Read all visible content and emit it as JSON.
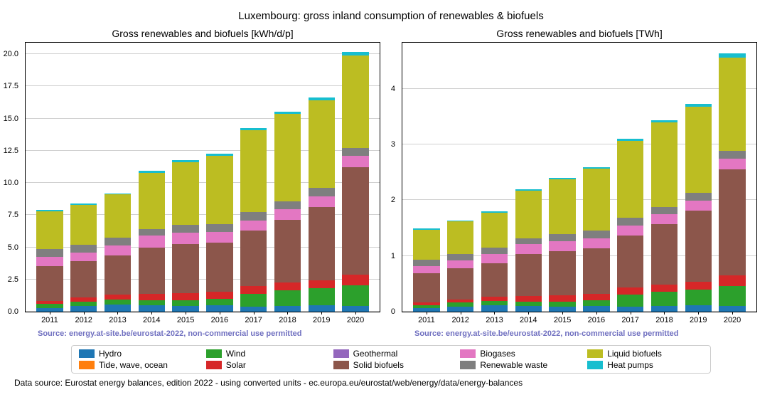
{
  "suptitle": "Luxembourg: gross inland consumption of renewables & biofuels",
  "source_line": "Source: energy.at-site.be/eurostat-2022, non-commercial use permitted",
  "source_color": "#7070c0",
  "footer": "Data source: Eurostat energy balances, edition 2022 - using converted units - ec.europa.eu/eurostat/web/energy/data/energy-balances",
  "grid_color": "#b0b0b0",
  "background_color": "#ffffff",
  "categories": [
    "2011",
    "2012",
    "2013",
    "2014",
    "2015",
    "2016",
    "2017",
    "2018",
    "2019",
    "2020"
  ],
  "series": [
    {
      "key": "hydro",
      "label": "Hydro",
      "color": "#1f77b4"
    },
    {
      "key": "tide",
      "label": "Tide, wave, ocean",
      "color": "#ff7f0e"
    },
    {
      "key": "wind",
      "label": "Wind",
      "color": "#2ca02c"
    },
    {
      "key": "solar",
      "label": "Solar",
      "color": "#d62728"
    },
    {
      "key": "geothermal",
      "label": "Geothermal",
      "color": "#9467bd"
    },
    {
      "key": "solid_biofuels",
      "label": "Solid biofuels",
      "color": "#8c564b"
    },
    {
      "key": "biogases",
      "label": "Biogases",
      "color": "#e377c2"
    },
    {
      "key": "renewable_waste",
      "label": "Renewable waste",
      "color": "#7f7f7f"
    },
    {
      "key": "liquid_biofuels",
      "label": "Liquid biofuels",
      "color": "#bcbd22"
    },
    {
      "key": "heat_pumps",
      "label": "Heat pumps",
      "color": "#17becf"
    }
  ],
  "panels": [
    {
      "title": "Gross renewables and biofuels [kWh/d/p]",
      "ymax": 21.0,
      "yticks": [
        0.0,
        2.5,
        5.0,
        7.5,
        10.0,
        12.5,
        15.0,
        17.5,
        20.0
      ],
      "ytick_labels": [
        "0.0",
        "2.5",
        "5.0",
        "7.5",
        "10.0",
        "12.5",
        "15.0",
        "17.5",
        "20.0"
      ],
      "data": {
        "hydro": [
          0.3,
          0.45,
          0.55,
          0.5,
          0.45,
          0.5,
          0.4,
          0.45,
          0.5,
          0.45
        ],
        "tide": [
          0,
          0,
          0,
          0,
          0,
          0,
          0,
          0,
          0,
          0
        ],
        "wind": [
          0.3,
          0.35,
          0.4,
          0.4,
          0.45,
          0.5,
          1.0,
          1.2,
          1.3,
          1.6
        ],
        "solar": [
          0.25,
          0.3,
          0.4,
          0.5,
          0.55,
          0.55,
          0.6,
          0.6,
          0.65,
          0.85
        ],
        "geothermal": [
          0,
          0,
          0,
          0,
          0,
          0,
          0,
          0,
          0,
          0
        ],
        "solid_biofuels": [
          2.7,
          2.8,
          3.0,
          3.6,
          3.8,
          3.8,
          4.3,
          4.9,
          5.7,
          8.3
        ],
        "biogases": [
          0.7,
          0.7,
          0.8,
          0.9,
          0.9,
          0.85,
          0.8,
          0.8,
          0.8,
          0.9
        ],
        "renewable_waste": [
          0.6,
          0.6,
          0.6,
          0.5,
          0.6,
          0.6,
          0.65,
          0.6,
          0.65,
          0.6
        ],
        "liquid_biofuels": [
          2.95,
          3.1,
          3.35,
          4.4,
          4.85,
          5.3,
          6.35,
          6.8,
          6.8,
          7.2
        ],
        "heat_pumps": [
          0.1,
          0.1,
          0.1,
          0.12,
          0.15,
          0.15,
          0.15,
          0.2,
          0.25,
          0.3
        ]
      }
    },
    {
      "title": "Gross renewables and biofuels [TWh]",
      "ymax": 4.85,
      "yticks": [
        0,
        1,
        2,
        3,
        4
      ],
      "ytick_labels": [
        "0",
        "1",
        "2",
        "3",
        "4"
      ],
      "data": {
        "hydro": [
          0.06,
          0.09,
          0.11,
          0.1,
          0.09,
          0.1,
          0.09,
          0.1,
          0.11,
          0.1
        ],
        "tide": [
          0,
          0,
          0,
          0,
          0,
          0,
          0,
          0,
          0,
          0
        ],
        "wind": [
          0.06,
          0.07,
          0.08,
          0.08,
          0.09,
          0.1,
          0.22,
          0.26,
          0.29,
          0.36
        ],
        "solar": [
          0.05,
          0.06,
          0.08,
          0.1,
          0.11,
          0.12,
          0.13,
          0.13,
          0.14,
          0.19
        ],
        "geothermal": [
          0,
          0,
          0,
          0,
          0,
          0,
          0,
          0,
          0,
          0
        ],
        "solid_biofuels": [
          0.52,
          0.56,
          0.6,
          0.75,
          0.8,
          0.82,
          0.93,
          1.08,
          1.27,
          1.9
        ],
        "biogases": [
          0.13,
          0.14,
          0.16,
          0.18,
          0.18,
          0.18,
          0.17,
          0.18,
          0.18,
          0.2
        ],
        "renewable_waste": [
          0.11,
          0.12,
          0.12,
          0.11,
          0.12,
          0.13,
          0.14,
          0.13,
          0.14,
          0.14
        ],
        "liquid_biofuels": [
          0.54,
          0.58,
          0.63,
          0.85,
          0.98,
          1.11,
          1.38,
          1.51,
          1.55,
          1.67
        ],
        "heat_pumps": [
          0.02,
          0.02,
          0.02,
          0.03,
          0.03,
          0.03,
          0.04,
          0.04,
          0.05,
          0.07
        ]
      }
    }
  ]
}
